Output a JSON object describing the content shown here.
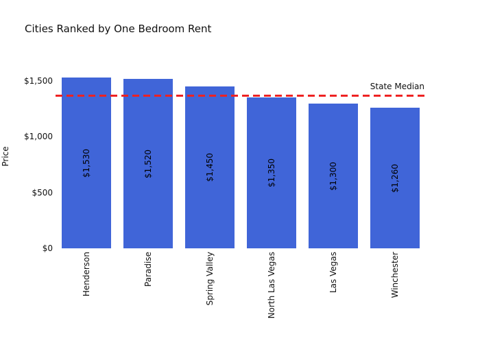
{
  "chart_data": {
    "type": "bar",
    "title": "Cities Ranked by One Bedroom Rent",
    "categories": [
      "Henderson",
      "Paradise",
      "Spring Valley",
      "North Las Vegas",
      "Las Vegas",
      "Winchester"
    ],
    "values": [
      1530,
      1520,
      1450,
      1350,
      1300,
      1260
    ],
    "bar_labels": [
      "$1,530",
      "$1,520",
      "$1,450",
      "$1,350",
      "$1,300",
      "$1,260"
    ],
    "xlabel": "",
    "ylabel": "Price",
    "yticks": {
      "values": [
        0,
        500,
        1000,
        1500
      ],
      "labels": [
        "$0",
        "$500",
        "$1,000",
        "$1,500"
      ]
    },
    "ylim": [
      0,
      1580
    ],
    "grid": false,
    "legend": "none",
    "bar_label_position": "inside-center",
    "tick_label_rotation": -90,
    "bar_color": "#4065D8",
    "reference_line": {
      "value": 1370,
      "label": "State Median",
      "style": "dashed",
      "color": "#EE2222"
    }
  },
  "colors": {
    "background": "#FFFFFF",
    "bar": "#4065D8",
    "median_line": "#EE2222",
    "text": "#101010"
  }
}
